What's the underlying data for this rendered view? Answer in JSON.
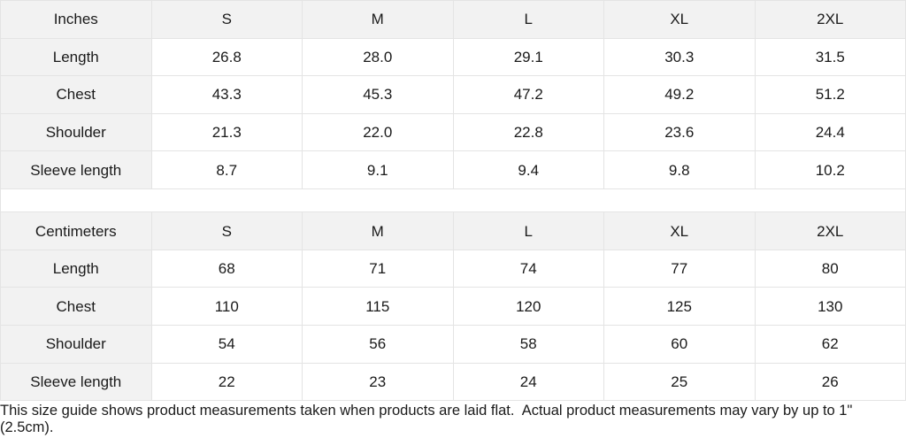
{
  "tables": [
    {
      "unit_label": "Inches",
      "sizes": [
        "S",
        "M",
        "L",
        "XL",
        "2XL"
      ],
      "rows": [
        {
          "label": "Length",
          "values": [
            "26.8",
            "28.0",
            "29.1",
            "30.3",
            "31.5"
          ]
        },
        {
          "label": "Chest",
          "values": [
            "43.3",
            "45.3",
            "47.2",
            "49.2",
            "51.2"
          ]
        },
        {
          "label": "Shoulder",
          "values": [
            "21.3",
            "22.0",
            "22.8",
            "23.6",
            "24.4"
          ]
        },
        {
          "label": "Sleeve length",
          "values": [
            "8.7",
            "9.1",
            "9.4",
            "9.8",
            "10.2"
          ]
        }
      ]
    },
    {
      "unit_label": "Centimeters",
      "sizes": [
        "S",
        "M",
        "L",
        "XL",
        "2XL"
      ],
      "rows": [
        {
          "label": "Length",
          "values": [
            "68",
            "71",
            "74",
            "77",
            "80"
          ]
        },
        {
          "label": "Chest",
          "values": [
            "110",
            "115",
            "120",
            "125",
            "130"
          ]
        },
        {
          "label": "Shoulder",
          "values": [
            "54",
            "56",
            "58",
            "60",
            "62"
          ]
        },
        {
          "label": "Sleeve length",
          "values": [
            "22",
            "23",
            "24",
            "25",
            "26"
          ]
        }
      ]
    }
  ],
  "footer": {
    "note": "This size guide shows product measurements taken when products are laid flat.  Actual product measurements may vary by up to 1\" (2.5cm)."
  },
  "colors": {
    "header_bg": "#f2f2f2",
    "border": "#e4e4e4",
    "text": "#1a1a1a",
    "background": "#ffffff"
  }
}
